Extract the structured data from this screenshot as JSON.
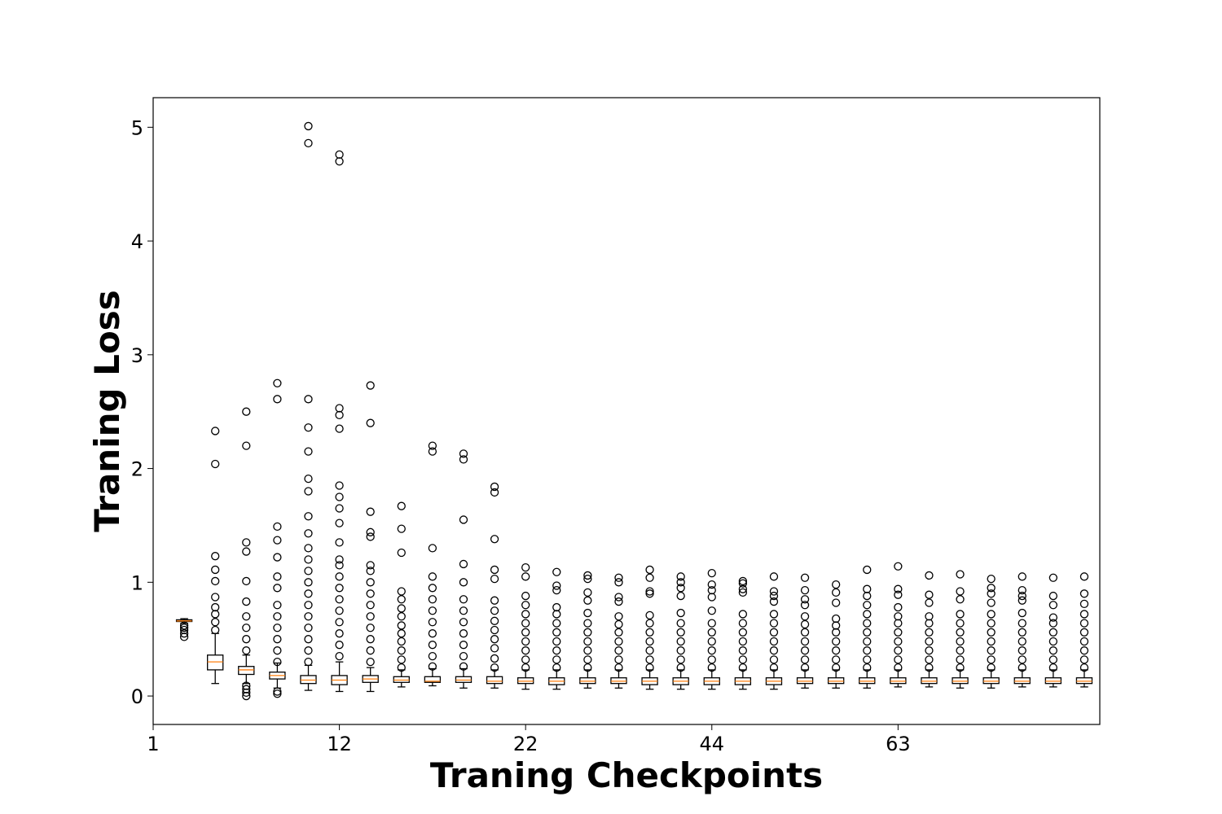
{
  "chart_data": {
    "type": "box",
    "xlabel": "Traning Checkpoints",
    "ylabel": "Traning Loss",
    "xlim": [
      0,
      30.5
    ],
    "ylim": [
      -0.25,
      5.26
    ],
    "xticks": [
      {
        "value": 0,
        "label": "1"
      },
      {
        "value": 6,
        "label": "12"
      },
      {
        "value": 12,
        "label": "22"
      },
      {
        "value": 18,
        "label": "44"
      },
      {
        "value": 24,
        "label": "63"
      }
    ],
    "yticks": [
      0,
      1,
      2,
      3,
      4,
      5
    ],
    "box_color": "#000000",
    "median_color": "#ff7f0e",
    "boxes": [
      {
        "whislo": 0.64,
        "q1": 0.655,
        "med": 0.66,
        "q3": 0.67,
        "whishi": 0.68,
        "fliers": [
          0.52,
          0.55,
          0.58,
          0.6,
          0.62
        ]
      },
      {
        "whislo": 0.11,
        "q1": 0.23,
        "med": 0.3,
        "q3": 0.36,
        "whishi": 0.55,
        "fliers": [
          0.58,
          0.65,
          0.72,
          0.78,
          0.87,
          1.01,
          1.11,
          1.23,
          2.04,
          2.33
        ]
      },
      {
        "whislo": 0.11,
        "q1": 0.19,
        "med": 0.23,
        "q3": 0.26,
        "whishi": 0.36,
        "fliers": [
          0.0,
          0.03,
          0.06,
          0.09,
          0.4,
          0.5,
          0.6,
          0.7,
          0.83,
          1.01,
          1.27,
          1.35,
          2.2,
          2.5
        ]
      },
      {
        "whislo": 0.07,
        "q1": 0.15,
        "med": 0.18,
        "q3": 0.21,
        "whishi": 0.29,
        "fliers": [
          0.02,
          0.04,
          0.3,
          0.4,
          0.5,
          0.6,
          0.7,
          0.8,
          0.95,
          1.05,
          1.22,
          1.37,
          1.49,
          2.61,
          2.75
        ]
      },
      {
        "whislo": 0.05,
        "q1": 0.11,
        "med": 0.14,
        "q3": 0.18,
        "whishi": 0.27,
        "fliers": [
          0.3,
          0.4,
          0.5,
          0.6,
          0.7,
          0.8,
          0.9,
          1.0,
          1.1,
          1.2,
          1.3,
          1.43,
          1.58,
          1.8,
          1.91,
          2.15,
          2.36,
          2.61,
          4.86,
          5.01
        ]
      },
      {
        "whislo": 0.04,
        "q1": 0.1,
        "med": 0.14,
        "q3": 0.18,
        "whishi": 0.3,
        "fliers": [
          0.35,
          0.45,
          0.55,
          0.65,
          0.75,
          0.85,
          0.95,
          1.05,
          1.15,
          1.2,
          1.35,
          1.52,
          1.65,
          1.75,
          1.85,
          2.35,
          2.47,
          2.53,
          4.7,
          4.76
        ]
      },
      {
        "whislo": 0.04,
        "q1": 0.12,
        "med": 0.15,
        "q3": 0.18,
        "whishi": 0.25,
        "fliers": [
          0.3,
          0.4,
          0.5,
          0.6,
          0.7,
          0.8,
          0.9,
          1.0,
          1.1,
          1.15,
          1.4,
          1.44,
          1.62,
          2.4,
          2.73
        ]
      },
      {
        "whislo": 0.08,
        "q1": 0.12,
        "med": 0.14,
        "q3": 0.17,
        "whishi": 0.23,
        "fliers": [
          0.25,
          0.32,
          0.4,
          0.48,
          0.55,
          0.62,
          0.7,
          0.77,
          0.85,
          0.92,
          1.26,
          1.47,
          1.67
        ]
      },
      {
        "whislo": 0.09,
        "q1": 0.12,
        "med": 0.13,
        "q3": 0.17,
        "whishi": 0.24,
        "fliers": [
          0.26,
          0.35,
          0.45,
          0.55,
          0.65,
          0.75,
          0.85,
          0.95,
          1.05,
          1.3,
          2.15,
          2.2
        ]
      },
      {
        "whislo": 0.07,
        "q1": 0.12,
        "med": 0.14,
        "q3": 0.17,
        "whishi": 0.24,
        "fliers": [
          0.26,
          0.35,
          0.45,
          0.55,
          0.65,
          0.75,
          0.85,
          1.0,
          1.16,
          1.55,
          2.08,
          2.13
        ]
      },
      {
        "whislo": 0.07,
        "q1": 0.11,
        "med": 0.13,
        "q3": 0.17,
        "whishi": 0.23,
        "fliers": [
          0.25,
          0.33,
          0.42,
          0.5,
          0.58,
          0.66,
          0.75,
          0.84,
          1.03,
          1.11,
          1.38,
          1.79,
          1.84
        ]
      },
      {
        "whislo": 0.06,
        "q1": 0.11,
        "med": 0.13,
        "q3": 0.16,
        "whishi": 0.23,
        "fliers": [
          0.25,
          0.32,
          0.4,
          0.48,
          0.56,
          0.64,
          0.72,
          0.8,
          0.88,
          1.05,
          1.13
        ]
      },
      {
        "whislo": 0.06,
        "q1": 0.1,
        "med": 0.13,
        "q3": 0.16,
        "whishi": 0.23,
        "fliers": [
          0.25,
          0.32,
          0.4,
          0.48,
          0.56,
          0.64,
          0.72,
          0.78,
          0.93,
          0.97,
          1.09
        ]
      },
      {
        "whislo": 0.07,
        "q1": 0.11,
        "med": 0.13,
        "q3": 0.16,
        "whishi": 0.23,
        "fliers": [
          0.25,
          0.32,
          0.4,
          0.48,
          0.56,
          0.64,
          0.73,
          0.84,
          0.91,
          1.03,
          1.06
        ]
      },
      {
        "whislo": 0.07,
        "q1": 0.11,
        "med": 0.13,
        "q3": 0.16,
        "whishi": 0.23,
        "fliers": [
          0.25,
          0.32,
          0.4,
          0.48,
          0.56,
          0.63,
          0.7,
          0.83,
          0.87,
          1.0,
          1.04
        ]
      },
      {
        "whislo": 0.06,
        "q1": 0.1,
        "med": 0.13,
        "q3": 0.16,
        "whishi": 0.23,
        "fliers": [
          0.25,
          0.32,
          0.4,
          0.48,
          0.56,
          0.64,
          0.71,
          0.9,
          0.92,
          1.04,
          1.11
        ]
      },
      {
        "whislo": 0.06,
        "q1": 0.1,
        "med": 0.13,
        "q3": 0.16,
        "whishi": 0.23,
        "fliers": [
          0.25,
          0.32,
          0.4,
          0.48,
          0.56,
          0.64,
          0.73,
          0.88,
          0.95,
          1.0,
          1.05
        ]
      },
      {
        "whislo": 0.06,
        "q1": 0.1,
        "med": 0.13,
        "q3": 0.16,
        "whishi": 0.23,
        "fliers": [
          0.25,
          0.32,
          0.4,
          0.48,
          0.56,
          0.64,
          0.75,
          0.87,
          0.93,
          0.98,
          1.08
        ]
      },
      {
        "whislo": 0.06,
        "q1": 0.1,
        "med": 0.13,
        "q3": 0.16,
        "whishi": 0.23,
        "fliers": [
          0.25,
          0.32,
          0.4,
          0.48,
          0.56,
          0.64,
          0.72,
          0.91,
          0.94,
          0.99,
          1.01
        ]
      },
      {
        "whislo": 0.06,
        "q1": 0.1,
        "med": 0.13,
        "q3": 0.16,
        "whishi": 0.23,
        "fliers": [
          0.25,
          0.32,
          0.4,
          0.48,
          0.56,
          0.64,
          0.72,
          0.83,
          0.88,
          0.92,
          1.05
        ]
      },
      {
        "whislo": 0.07,
        "q1": 0.11,
        "med": 0.13,
        "q3": 0.16,
        "whishi": 0.23,
        "fliers": [
          0.25,
          0.32,
          0.4,
          0.48,
          0.56,
          0.63,
          0.7,
          0.8,
          0.85,
          0.93,
          1.04
        ]
      },
      {
        "whislo": 0.07,
        "q1": 0.11,
        "med": 0.13,
        "q3": 0.16,
        "whishi": 0.23,
        "fliers": [
          0.25,
          0.32,
          0.4,
          0.48,
          0.56,
          0.62,
          0.68,
          0.82,
          0.91,
          0.98
        ]
      },
      {
        "whislo": 0.07,
        "q1": 0.11,
        "med": 0.13,
        "q3": 0.16,
        "whishi": 0.23,
        "fliers": [
          0.25,
          0.32,
          0.4,
          0.48,
          0.56,
          0.64,
          0.72,
          0.8,
          0.88,
          0.94,
          1.11
        ]
      },
      {
        "whislo": 0.08,
        "q1": 0.11,
        "med": 0.13,
        "q3": 0.16,
        "whishi": 0.23,
        "fliers": [
          0.25,
          0.32,
          0.4,
          0.48,
          0.56,
          0.64,
          0.7,
          0.78,
          0.89,
          0.94,
          1.14
        ]
      },
      {
        "whislo": 0.08,
        "q1": 0.11,
        "med": 0.13,
        "q3": 0.16,
        "whishi": 0.23,
        "fliers": [
          0.25,
          0.32,
          0.4,
          0.48,
          0.56,
          0.64,
          0.7,
          0.82,
          0.89,
          1.06
        ]
      },
      {
        "whislo": 0.07,
        "q1": 0.11,
        "med": 0.13,
        "q3": 0.16,
        "whishi": 0.23,
        "fliers": [
          0.25,
          0.32,
          0.4,
          0.48,
          0.56,
          0.64,
          0.72,
          0.85,
          0.92,
          1.07
        ]
      },
      {
        "whislo": 0.07,
        "q1": 0.11,
        "med": 0.13,
        "q3": 0.16,
        "whishi": 0.23,
        "fliers": [
          0.25,
          0.32,
          0.4,
          0.48,
          0.56,
          0.64,
          0.72,
          0.82,
          0.9,
          0.95,
          1.03
        ]
      },
      {
        "whislo": 0.08,
        "q1": 0.11,
        "med": 0.13,
        "q3": 0.16,
        "whishi": 0.23,
        "fliers": [
          0.25,
          0.32,
          0.4,
          0.48,
          0.56,
          0.64,
          0.73,
          0.84,
          0.88,
          0.93,
          1.05
        ]
      },
      {
        "whislo": 0.08,
        "q1": 0.11,
        "med": 0.13,
        "q3": 0.16,
        "whishi": 0.23,
        "fliers": [
          0.25,
          0.32,
          0.4,
          0.48,
          0.56,
          0.64,
          0.69,
          0.8,
          0.88,
          1.04
        ]
      },
      {
        "whislo": 0.08,
        "q1": 0.11,
        "med": 0.13,
        "q3": 0.16,
        "whishi": 0.23,
        "fliers": [
          0.25,
          0.32,
          0.4,
          0.48,
          0.56,
          0.64,
          0.72,
          0.81,
          0.9,
          1.05
        ]
      }
    ]
  }
}
